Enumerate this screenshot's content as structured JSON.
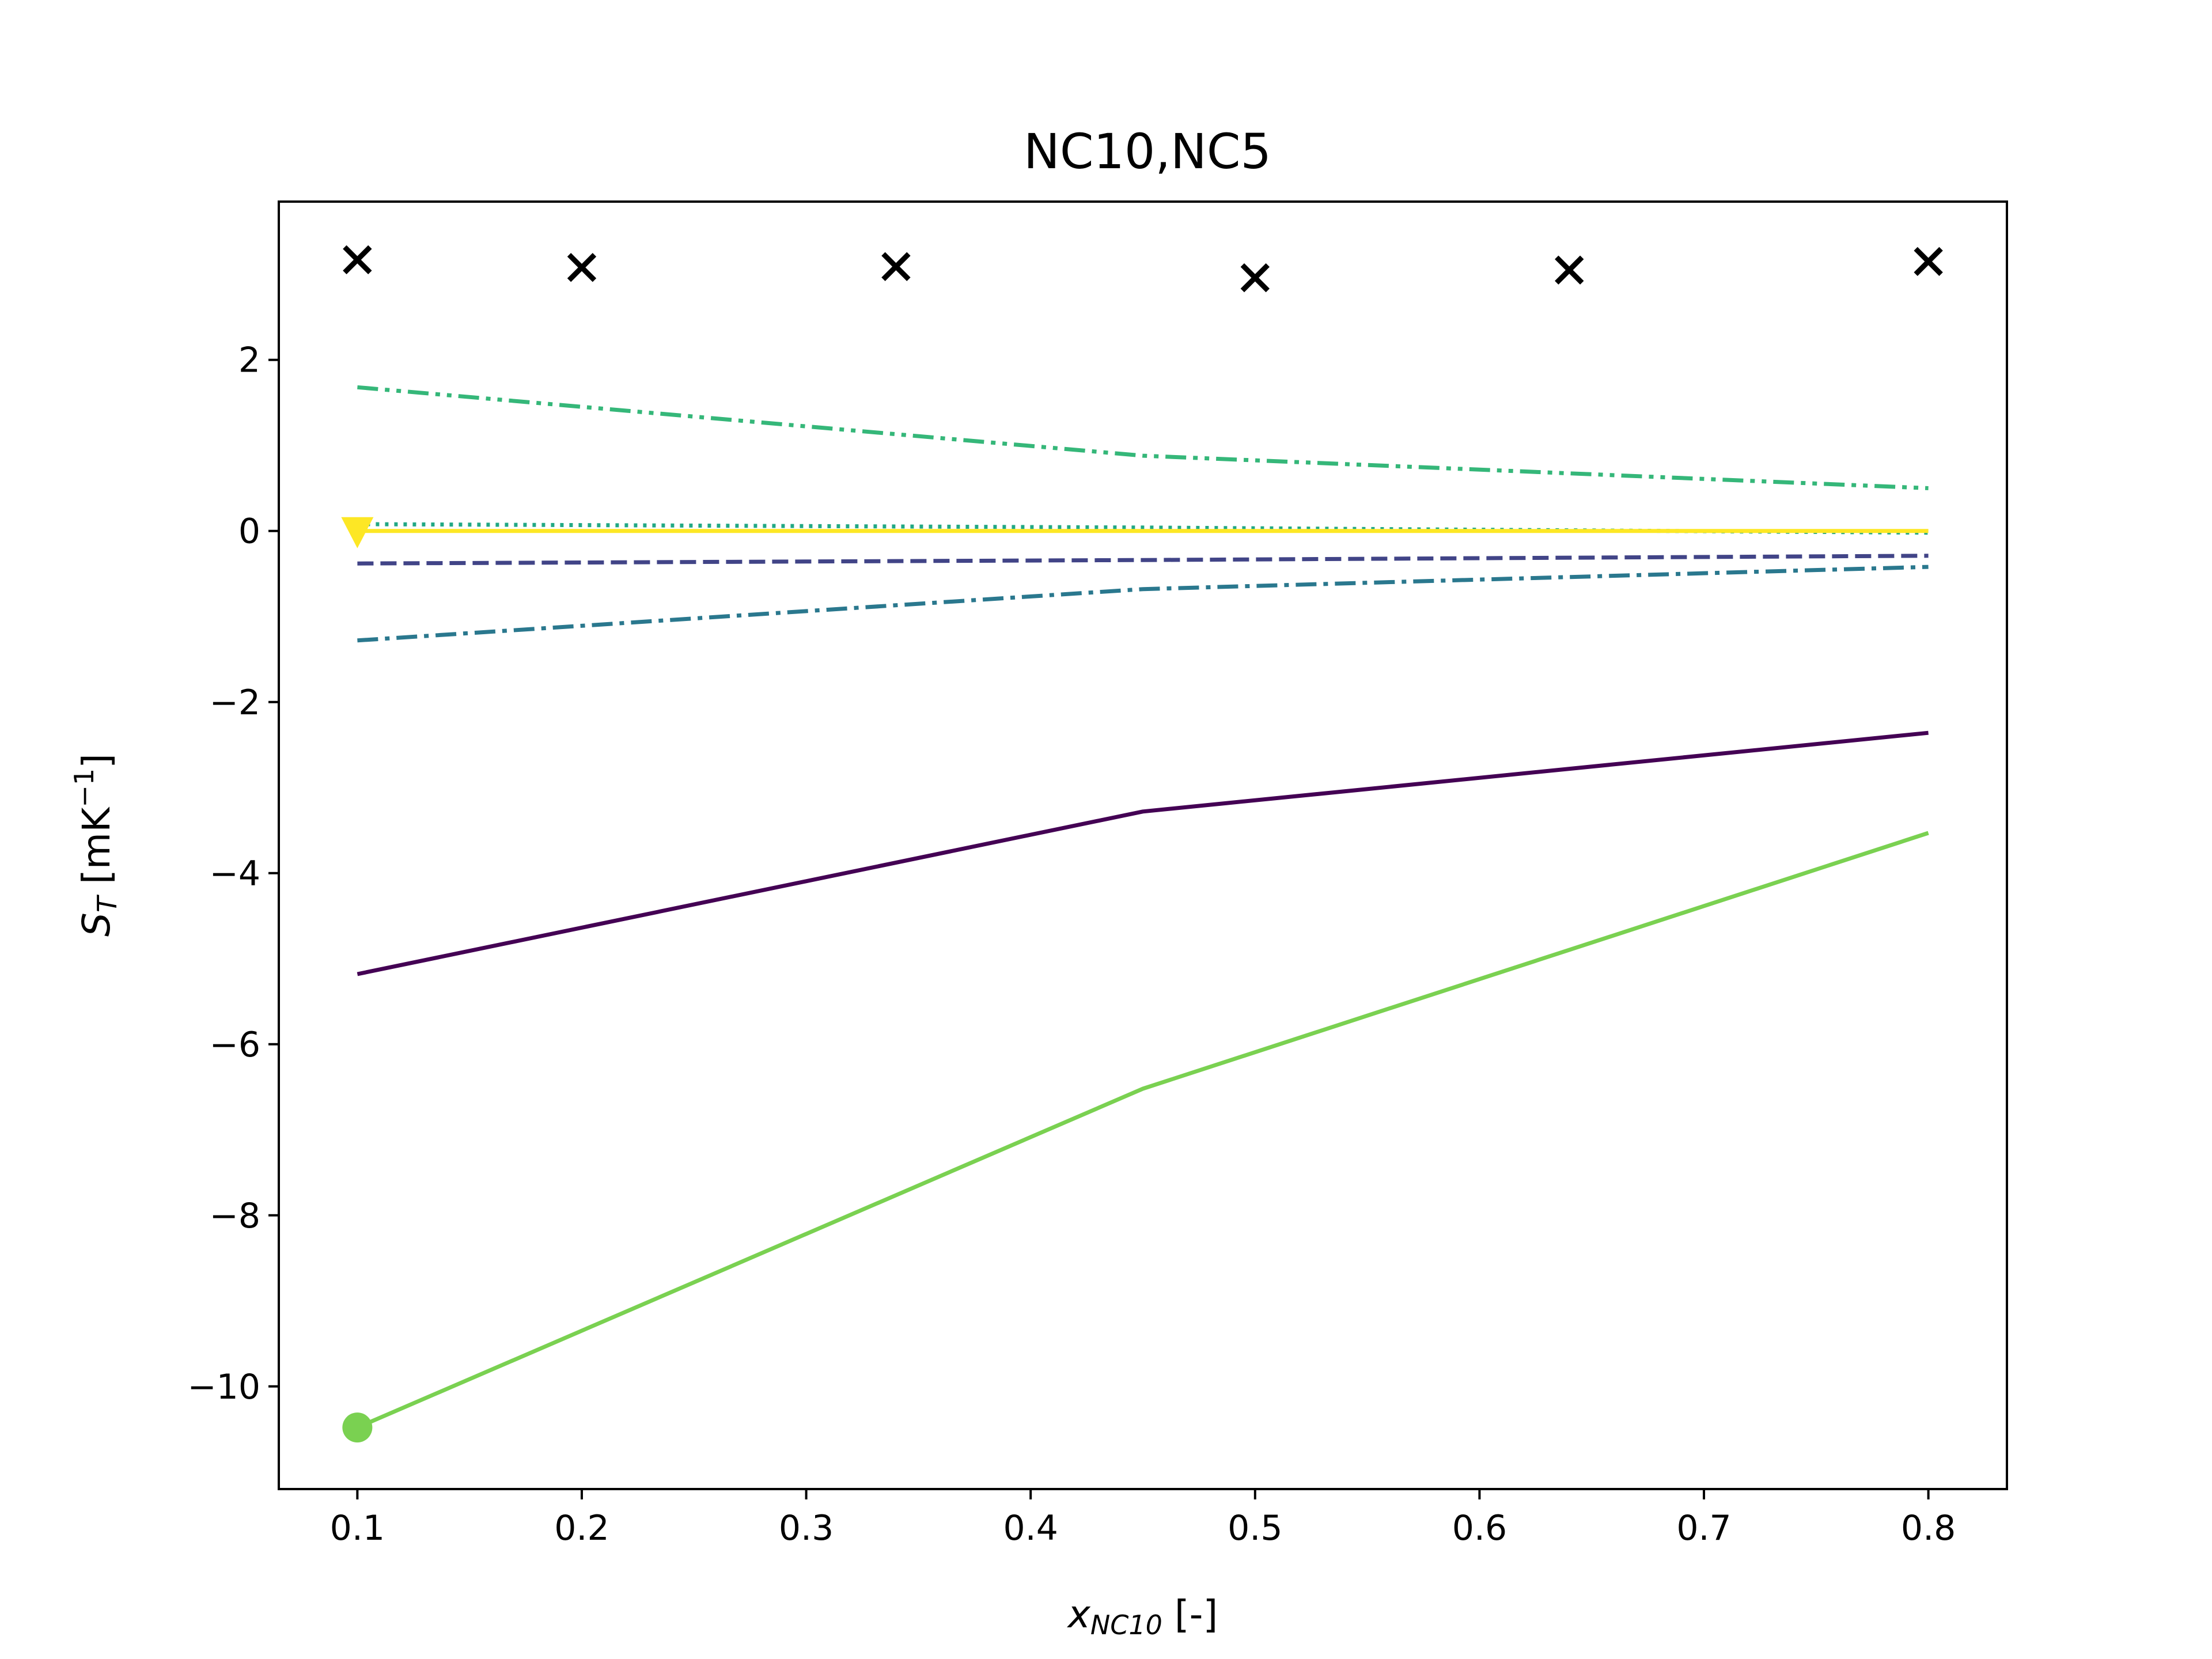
{
  "chart_data": {
    "type": "line",
    "title": "NC10,NC5",
    "xlabel": {
      "main": "x",
      "sub": "NC10",
      "suffix": " [-]"
    },
    "ylabel": {
      "main": "S",
      "sub": "T",
      "prefix": " [mK",
      "sup": "−1",
      "suffix": "]"
    },
    "xlim": [
      0.065,
      0.835
    ],
    "ylim": [
      -11.2,
      3.85
    ],
    "xticks": [
      0.1,
      0.2,
      0.3,
      0.4,
      0.5,
      0.6,
      0.7,
      0.8
    ],
    "xtick_labels": [
      "0.1",
      "0.2",
      "0.3",
      "0.4",
      "0.5",
      "0.6",
      "0.7",
      "0.8"
    ],
    "yticks": [
      -10,
      -8,
      -6,
      -4,
      -2,
      0,
      2
    ],
    "ytick_labels": [
      "−10",
      "−8",
      "−6",
      "−4",
      "−2",
      "0",
      "2"
    ],
    "grid": false,
    "legend": "none",
    "x": [
      0.1,
      0.45,
      0.8
    ],
    "series": [
      {
        "values": [
          -5.18,
          -3.28,
          -2.36
        ],
        "color": "#440154",
        "style": "solid"
      },
      {
        "values": [
          -0.38,
          -0.34,
          -0.29
        ],
        "color": "#414487",
        "style": "dashed"
      },
      {
        "values": [
          -1.28,
          -0.68,
          -0.42
        ],
        "color": "#2a788e",
        "style": "dashdot"
      },
      {
        "values": [
          0.08,
          0.04,
          -0.02
        ],
        "color": "#22a884",
        "style": "dotted"
      },
      {
        "values": [
          1.68,
          0.88,
          0.5
        ],
        "color": "#35b779",
        "style": "dashdotdot"
      },
      {
        "values": [
          -10.48,
          -6.52,
          -3.53
        ],
        "color": "#7ad151",
        "style": "solid",
        "marker": "circle"
      },
      {
        "values": [
          0.0,
          0.0,
          0.0
        ],
        "color": "#fde725",
        "style": "solid",
        "marker": "triangle-down"
      }
    ],
    "points": {
      "marker": "x",
      "color": "#000000",
      "x": [
        0.1,
        0.2,
        0.34,
        0.5,
        0.64,
        0.8
      ],
      "y": [
        3.17,
        3.08,
        3.09,
        2.96,
        3.05,
        3.15
      ]
    }
  }
}
